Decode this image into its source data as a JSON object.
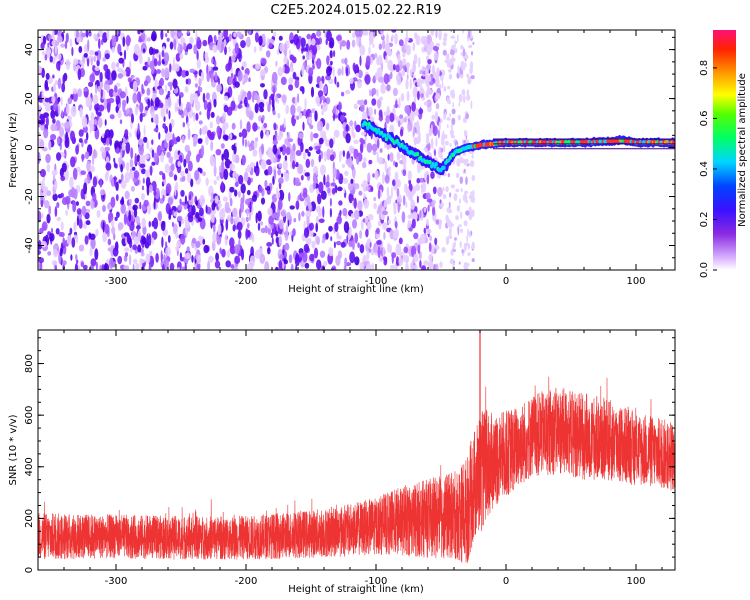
{
  "title": "C2E5.2024.015.02.22.R19",
  "chart_data": [
    {
      "type": "heatmap",
      "name": "spectrogram",
      "xlabel": "Height of straight line (km)",
      "ylabel": "Frequency (Hz)",
      "xlim": [
        -360,
        130
      ],
      "ylim": [
        -50,
        48
      ],
      "x_ticks": [
        -300,
        -200,
        -100,
        0,
        100
      ],
      "x_tick_labels": [
        "-300",
        "-200",
        "-100",
        "0",
        "100"
      ],
      "y_ticks": [
        -40,
        -20,
        0,
        20,
        40
      ],
      "y_tick_labels": [
        "-40",
        "-20",
        "0",
        "20",
        "40"
      ],
      "noise_region_x": [
        -360,
        -50
      ],
      "faint_noise_region_x": [
        -50,
        -25
      ],
      "signal_track": {
        "x": [
          -110,
          -100,
          -90,
          -80,
          -70,
          -60,
          -50,
          -45,
          -40,
          -30,
          -20,
          -10,
          0,
          20,
          60,
          90,
          100,
          130
        ],
        "frequency": [
          10,
          7,
          4,
          1,
          -3,
          -6,
          -9,
          -6,
          -2,
          0,
          1,
          1.5,
          2,
          2,
          2,
          3,
          2,
          2
        ]
      },
      "colorbar": {
        "label": "Normalized spectral amplitude",
        "ticks": [
          0.0,
          0.2,
          0.4,
          0.6,
          0.8
        ],
        "tick_labels": [
          "0.0",
          "0.2",
          "0.4",
          "0.6",
          "0.8"
        ],
        "range": [
          0,
          0.95
        ]
      }
    },
    {
      "type": "line",
      "name": "snr",
      "xlabel": "Height of straight line (km)",
      "ylabel": "SNR (10 * v/v)",
      "xlim": [
        -360,
        130
      ],
      "ylim": [
        0,
        930
      ],
      "x_ticks": [
        -300,
        -200,
        -100,
        0,
        100
      ],
      "x_tick_labels": [
        "-300",
        "-200",
        "-100",
        "0",
        "100"
      ],
      "y_ticks": [
        0,
        200,
        400,
        600,
        800
      ],
      "y_tick_labels": [
        "0",
        "200",
        "400",
        "600",
        "800"
      ],
      "color": "#ee3333",
      "envelope": {
        "x": [
          -360,
          -300,
          -250,
          -200,
          -150,
          -120,
          -100,
          -80,
          -60,
          -40,
          -30,
          -25,
          -20,
          -15,
          -10,
          0,
          10,
          20,
          40,
          60,
          80,
          100,
          130
        ],
        "mean": [
          130,
          130,
          125,
          125,
          140,
          155,
          170,
          190,
          200,
          210,
          230,
          320,
          380,
          400,
          420,
          450,
          480,
          520,
          540,
          520,
          500,
          470,
          440
        ],
        "amp": [
          110,
          100,
          100,
          100,
          110,
          120,
          130,
          160,
          180,
          200,
          250,
          260,
          280,
          260,
          220,
          200,
          190,
          190,
          200,
          200,
          190,
          170,
          160
        ]
      },
      "peak": {
        "x": -20,
        "y": 930
      }
    }
  ]
}
